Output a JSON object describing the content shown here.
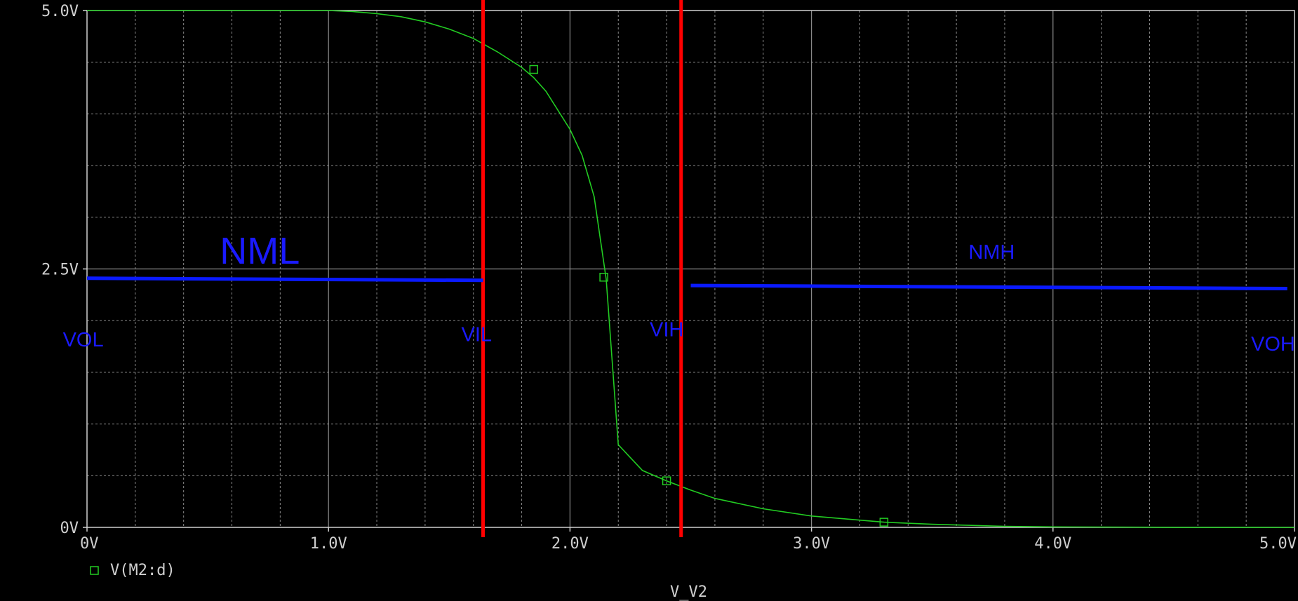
{
  "chart_data": {
    "type": "line",
    "xlabel": "V_V2",
    "xlim": [
      0,
      5
    ],
    "ylim": [
      0,
      5
    ],
    "x_ticks": [
      {
        "value": 0,
        "label": "0V"
      },
      {
        "value": 1,
        "label": "1.0V"
      },
      {
        "value": 2,
        "label": "2.0V"
      },
      {
        "value": 3,
        "label": "3.0V"
      },
      {
        "value": 4,
        "label": "4.0V"
      },
      {
        "value": 5,
        "label": "5.0V"
      }
    ],
    "y_ticks": [
      {
        "value": 0,
        "label": "0V"
      },
      {
        "value": 2.5,
        "label": "2.5V"
      },
      {
        "value": 5,
        "label": "5.0V"
      }
    ],
    "grid": true,
    "grid_x_step": 0.2,
    "grid_y_step": 0.5,
    "legend": {
      "position": "bottom-left",
      "label": "V(M2:d)"
    },
    "series": [
      {
        "name": "V(M2:d)",
        "color": "#22cc22",
        "x": [
          0,
          0.5,
          1.0,
          1.1,
          1.2,
          1.3,
          1.4,
          1.5,
          1.6,
          1.7,
          1.8,
          1.85,
          1.9,
          2.0,
          2.05,
          2.1,
          2.15,
          2.2,
          2.3,
          2.4,
          2.5,
          2.6,
          2.8,
          3.0,
          3.2,
          3.3,
          3.5,
          3.8,
          4.0,
          4.5,
          5.0
        ],
        "y": [
          5.0,
          5.0,
          5.0,
          4.99,
          4.97,
          4.94,
          4.89,
          4.82,
          4.73,
          4.6,
          4.45,
          4.35,
          4.22,
          3.85,
          3.6,
          3.2,
          2.4,
          0.8,
          0.55,
          0.45,
          0.36,
          0.28,
          0.18,
          0.11,
          0.07,
          0.05,
          0.03,
          0.01,
          0.005,
          0.001,
          0.0
        ],
        "markers": [
          {
            "x": 1.85,
            "y": 4.43
          },
          {
            "x": 2.14,
            "y": 2.42
          },
          {
            "x": 2.4,
            "y": 0.45
          },
          {
            "x": 3.3,
            "y": 0.05
          }
        ]
      }
    ],
    "vertical_lines": [
      {
        "name": "VIL",
        "x": 1.64,
        "color": "#ff0000"
      },
      {
        "name": "VIH",
        "x": 2.46,
        "color": "#ff0000"
      }
    ],
    "horizontal_segments": [
      {
        "name": "NML",
        "x0": 0.0,
        "x1": 1.64,
        "y0": 2.41,
        "y1": 2.39,
        "color": "#0a1aff"
      },
      {
        "name": "NMH",
        "x0": 2.5,
        "x1": 4.97,
        "y0": 2.34,
        "y1": 2.31,
        "color": "#0a1aff"
      }
    ],
    "annotations": [
      {
        "text": "NML",
        "x": 0.55,
        "y": 2.55,
        "size": "large"
      },
      {
        "text": "NMH",
        "x": 3.65,
        "y": 2.6,
        "size": "medium"
      },
      {
        "text": "VOL",
        "x": -0.1,
        "y": 1.75,
        "size": "medium"
      },
      {
        "text": "VIL",
        "x": 1.55,
        "y": 1.8,
        "size": "medium"
      },
      {
        "text": "VIH",
        "x": 2.33,
        "y": 1.85,
        "size": "medium"
      },
      {
        "text": "VOH",
        "x": 4.82,
        "y": 1.71,
        "size": "medium"
      }
    ]
  },
  "colors": {
    "background": "#000000",
    "grid": "#8a8a8a",
    "axis": "#cfcfcf",
    "trace": "#22cc22",
    "marker_line": "#ff0000",
    "annotation": "#1a1aff"
  }
}
